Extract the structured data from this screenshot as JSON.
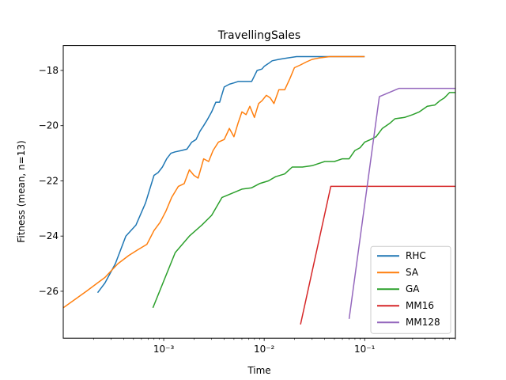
{
  "chart_data": {
    "type": "line",
    "title": "TravellingSales",
    "xlabel": "Time",
    "ylabel": "Fitness (mean, n=13)",
    "xscale": "log",
    "xlim": [
      0.0001,
      0.8
    ],
    "ylim": [
      -27.7,
      -17.1
    ],
    "x_ticks": [
      0.001,
      0.01,
      0.1
    ],
    "x_tick_labels": [
      "10⁻³",
      "10⁻²",
      "10⁻¹"
    ],
    "y_ticks": [
      -26,
      -24,
      -22,
      -20,
      -18
    ],
    "y_tick_labels": [
      "−26",
      "−24",
      "−22",
      "−20",
      "−18"
    ],
    "legend_position": "lower-right",
    "grid": false,
    "series": [
      {
        "name": "RHC",
        "color": "#1f77b4",
        "x": [
          0.00022,
          0.00026,
          0.00033,
          0.00042,
          0.00053,
          0.00066,
          0.0008,
          0.00088,
          0.00097,
          0.00107,
          0.00118,
          0.0013,
          0.0015,
          0.0017,
          0.0019,
          0.0021,
          0.0023,
          0.0025,
          0.0027,
          0.003,
          0.0033,
          0.0036,
          0.004,
          0.0045,
          0.005,
          0.0055,
          0.006,
          0.0065,
          0.0075,
          0.0085,
          0.0095,
          0.01,
          0.011,
          0.012,
          0.014,
          0.017,
          0.021,
          0.026,
          0.033,
          0.05,
          0.1
        ],
        "y": [
          -26.05,
          -25.7,
          -25.0,
          -24.0,
          -23.6,
          -22.8,
          -21.8,
          -21.7,
          -21.5,
          -21.2,
          -21.0,
          -20.95,
          -20.9,
          -20.85,
          -20.6,
          -20.5,
          -20.2,
          -20.0,
          -19.8,
          -19.5,
          -19.15,
          -19.15,
          -18.6,
          -18.5,
          -18.45,
          -18.4,
          -18.4,
          -18.4,
          -18.4,
          -18.0,
          -17.95,
          -17.85,
          -17.75,
          -17.65,
          -17.6,
          -17.55,
          -17.5,
          -17.5,
          -17.5,
          -17.5,
          -17.5
        ]
      },
      {
        "name": "SA",
        "color": "#ff7f0e",
        "x": [
          0.0001,
          0.00017,
          0.00026,
          0.00035,
          0.00045,
          0.00055,
          0.00068,
          0.0008,
          0.00092,
          0.00105,
          0.0012,
          0.0014,
          0.0016,
          0.0018,
          0.002,
          0.0022,
          0.0025,
          0.0028,
          0.0031,
          0.0035,
          0.004,
          0.0045,
          0.005,
          0.0055,
          0.006,
          0.0066,
          0.0072,
          0.008,
          0.0088,
          0.0095,
          0.0105,
          0.0115,
          0.0125,
          0.014,
          0.016,
          0.018,
          0.02,
          0.023,
          0.026,
          0.03,
          0.035,
          0.045,
          0.06,
          0.08,
          0.1
        ],
        "y": [
          -26.6,
          -26.0,
          -25.5,
          -25.0,
          -24.7,
          -24.5,
          -24.3,
          -23.8,
          -23.5,
          -23.1,
          -22.6,
          -22.2,
          -22.1,
          -21.6,
          -21.8,
          -21.9,
          -21.2,
          -21.3,
          -20.9,
          -20.6,
          -20.5,
          -20.1,
          -20.4,
          -19.9,
          -19.5,
          -19.6,
          -19.3,
          -19.7,
          -19.2,
          -19.1,
          -18.9,
          -19.0,
          -19.2,
          -18.7,
          -18.7,
          -18.3,
          -17.9,
          -17.8,
          -17.7,
          -17.6,
          -17.55,
          -17.5,
          -17.5,
          -17.5,
          -17.5
        ]
      },
      {
        "name": "GA",
        "color": "#2ca02c",
        "x": [
          0.00078,
          0.0013,
          0.0018,
          0.0024,
          0.003,
          0.0038,
          0.0048,
          0.006,
          0.0075,
          0.009,
          0.011,
          0.013,
          0.016,
          0.019,
          0.024,
          0.03,
          0.04,
          0.05,
          0.06,
          0.07,
          0.08,
          0.09,
          0.1,
          0.115,
          0.13,
          0.15,
          0.18,
          0.2,
          0.25,
          0.3,
          0.35,
          0.42,
          0.5,
          0.56,
          0.62,
          0.7,
          0.8
        ],
        "y": [
          -26.6,
          -24.6,
          -24.0,
          -23.6,
          -23.25,
          -22.6,
          -22.45,
          -22.3,
          -22.25,
          -22.1,
          -22.0,
          -21.85,
          -21.75,
          -21.5,
          -21.5,
          -21.45,
          -21.3,
          -21.3,
          -21.2,
          -21.2,
          -20.9,
          -20.8,
          -20.6,
          -20.5,
          -20.4,
          -20.1,
          -19.9,
          -19.75,
          -19.7,
          -19.6,
          -19.5,
          -19.3,
          -19.25,
          -19.1,
          -19.0,
          -18.8,
          -18.8
        ]
      },
      {
        "name": "MM16",
        "color": "#d62728",
        "x": [
          0.023,
          0.046,
          0.8
        ],
        "y": [
          -27.2,
          -22.2,
          -22.2
        ]
      },
      {
        "name": "MM128",
        "color": "#9467bd",
        "x": [
          0.07,
          0.14,
          0.22,
          0.8
        ],
        "y": [
          -27.0,
          -18.95,
          -18.65,
          -18.65
        ]
      }
    ]
  }
}
